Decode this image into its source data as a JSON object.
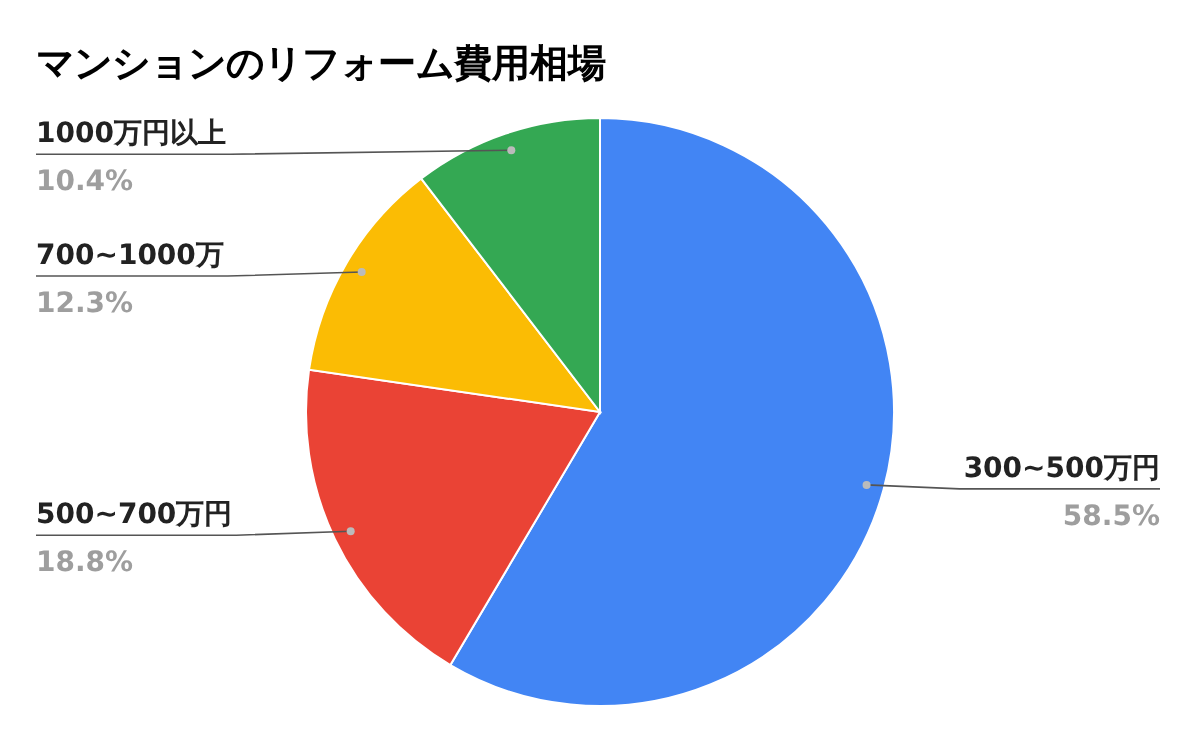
{
  "chart_data": {
    "type": "pie",
    "title": "マンションのリフォーム費用相場",
    "categories": [
      "300~500万円",
      "500~700万円",
      "700~1000万",
      "1000万円以上"
    ],
    "values": [
      58.5,
      18.8,
      12.3,
      10.4
    ],
    "colors": [
      "#4285f4",
      "#ea4335",
      "#fbbc04",
      "#34a853"
    ],
    "value_labels": [
      "58.5%",
      "18.8%",
      "12.3%",
      "10.4%"
    ],
    "legend": false
  }
}
